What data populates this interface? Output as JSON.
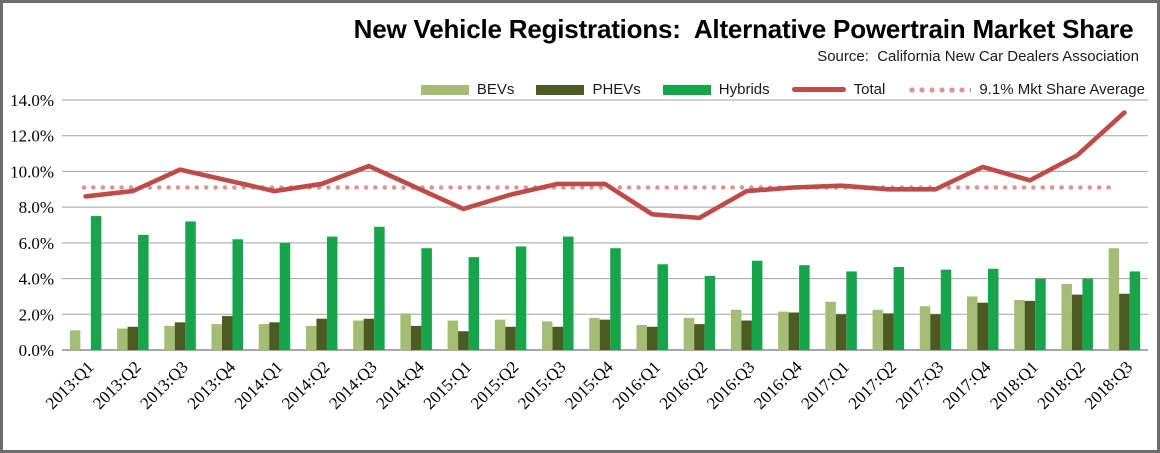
{
  "header": {
    "title": "New Vehicle Registrations:  Alternative Powertrain Market Share",
    "source": "Source:  California New Car Dealers Association"
  },
  "legend": {
    "items": [
      {
        "label": "BEVs",
        "marker": "swatch",
        "color": "#a4bd74"
      },
      {
        "label": "PHEVs",
        "marker": "swatch",
        "color": "#4c5b22"
      },
      {
        "label": "Hybrids",
        "marker": "swatch",
        "color": "#17a44b"
      },
      {
        "label": "Total",
        "marker": "line",
        "color": "#bd4c49"
      },
      {
        "label": "9.1% Mkt Share Average",
        "marker": "dotted",
        "color": "#d99694"
      }
    ]
  },
  "chart_data": {
    "type": "bar",
    "title": "New Vehicle Registrations:  Alternative Powertrain Market Share",
    "xlabel": "",
    "ylabel": "",
    "ylim": [
      0,
      14
    ],
    "grid": "horizontal",
    "legend_position": "top",
    "categories": [
      "2013:Q1",
      "2013:Q2",
      "2013:Q3",
      "2013:Q4",
      "2014:Q1",
      "2014:Q2",
      "2014:Q3",
      "2014:Q4",
      "2015:Q1",
      "2015:Q2",
      "2015:Q3",
      "2015:Q4",
      "2016:Q1",
      "2016:Q2",
      "2016:Q3",
      "2016:Q4",
      "2017:Q1",
      "2017:Q2",
      "2017:Q3",
      "2017:Q4",
      "2018:Q1",
      "2018:Q2",
      "2018:Q3"
    ],
    "y_ticks": [
      {
        "value": 0,
        "label": "0.0%"
      },
      {
        "value": 2,
        "label": "2.0%"
      },
      {
        "value": 4,
        "label": "4.0%"
      },
      {
        "value": 6,
        "label": "6.0%"
      },
      {
        "value": 8,
        "label": "8.0%"
      },
      {
        "value": 10,
        "label": "10.0%"
      },
      {
        "value": 12,
        "label": "12.0%"
      },
      {
        "value": 14,
        "label": "14.0%"
      }
    ],
    "series": [
      {
        "name": "BEVs",
        "type": "bar",
        "color": "#a4bd74",
        "values": [
          1.1,
          1.2,
          1.35,
          1.45,
          1.45,
          1.35,
          1.65,
          2.05,
          1.65,
          1.7,
          1.6,
          1.8,
          1.4,
          1.8,
          2.25,
          2.15,
          2.7,
          2.25,
          2.45,
          3.0,
          2.8,
          3.7,
          5.7
        ]
      },
      {
        "name": "PHEVs",
        "type": "bar",
        "color": "#4c5b22",
        "values": [
          0,
          1.3,
          1.55,
          1.9,
          1.55,
          1.75,
          1.75,
          1.35,
          1.05,
          1.3,
          1.3,
          1.7,
          1.3,
          1.45,
          1.65,
          2.1,
          2.0,
          2.05,
          2.0,
          2.65,
          2.75,
          3.1,
          3.15
        ]
      },
      {
        "name": "Hybrids",
        "type": "bar",
        "color": "#17a44b",
        "values": [
          7.5,
          6.45,
          7.2,
          6.2,
          6.0,
          6.35,
          6.9,
          5.7,
          5.2,
          5.8,
          6.35,
          5.7,
          4.8,
          4.15,
          5.0,
          4.75,
          4.4,
          4.65,
          4.5,
          4.55,
          4.0,
          4.0,
          4.4
        ]
      },
      {
        "name": "Total",
        "type": "line",
        "color": "#bd4c49",
        "values": [
          8.6,
          8.9,
          10.1,
          9.5,
          8.9,
          9.3,
          10.3,
          9.1,
          7.9,
          8.7,
          9.3,
          9.3,
          7.6,
          7.4,
          8.9,
          9.1,
          9.2,
          9.0,
          9.0,
          10.25,
          9.5,
          10.9,
          13.3
        ]
      }
    ],
    "reference_line": {
      "label": "9.1% Mkt Share Average",
      "value": 9.1,
      "color": "#d99694",
      "style": "dotted"
    }
  },
  "style": {
    "gridline_color": "#a3a3a3",
    "axis_color": "#8c8c8c",
    "frame_color": "#6d6d6d"
  }
}
